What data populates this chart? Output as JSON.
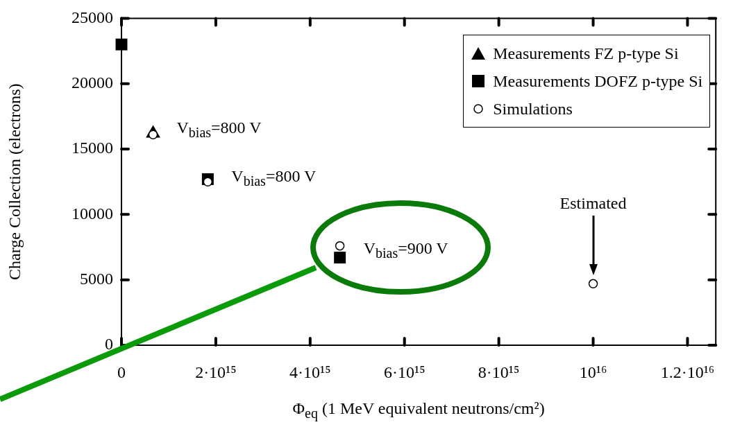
{
  "chart_data": {
    "type": "scatter",
    "xlabel": "Φ$_{eq}$ (1 MeV equivalent neutrons/cm²)",
    "ylabel": "Charge Collection (electrons)",
    "xlim": [
      0,
      1.26e+16
    ],
    "xticks": [
      0,
      {
        "value": 2000000000000000.0,
        "label": "2·10¹⁵"
      },
      {
        "value": 4000000000000000.0,
        "label": "4·10¹⁵"
      },
      {
        "value": 6000000000000000.0,
        "label": "6·10¹⁵"
      },
      {
        "value": 8000000000000000.0,
        "label": "8·10¹⁵"
      },
      {
        "value": 1e+16,
        "label": "10¹⁶"
      },
      {
        "value": 1.2e+16,
        "label": "1.2·10¹⁶"
      }
    ],
    "ylim": [
      0,
      25000
    ],
    "yticks": [
      0,
      5000,
      10000,
      15000,
      20000,
      25000
    ],
    "grid": false,
    "legend": "top right",
    "series": [
      {
        "name": "Measurements FZ p-type Si",
        "color": "#000000",
        "marker": "triangle",
        "x": [
          670000000000000.0
        ],
        "values": [
          16200
        ]
      },
      {
        "name": "Measurements DOFZ p-type Si",
        "color": "#000000",
        "marker": "square",
        "x": [
          0,
          1830000000000000.0,
          4630000000000000.0
        ],
        "values": [
          23000,
          12700,
          6700
        ]
      },
      {
        "name": "Simulations",
        "color": "#000000",
        "marker": "circle",
        "x": [
          670000000000000.0,
          1830000000000000.0,
          4630000000000000.0,
          1e+16
        ],
        "values": [
          16100,
          12500,
          7600,
          4700
        ]
      }
    ],
    "annotations": [
      {
        "text": "V$_{bias}$=800 V",
        "x": 670000000000000.0,
        "y": 16200
      },
      {
        "text": "V$_{bias}$=800 V",
        "x": 1830000000000000.0,
        "y": 12500
      },
      {
        "text": "V$_{bias}$=900 V",
        "x": 4630000000000000.0,
        "y": 7000
      },
      "Estimated"
    ]
  }
}
